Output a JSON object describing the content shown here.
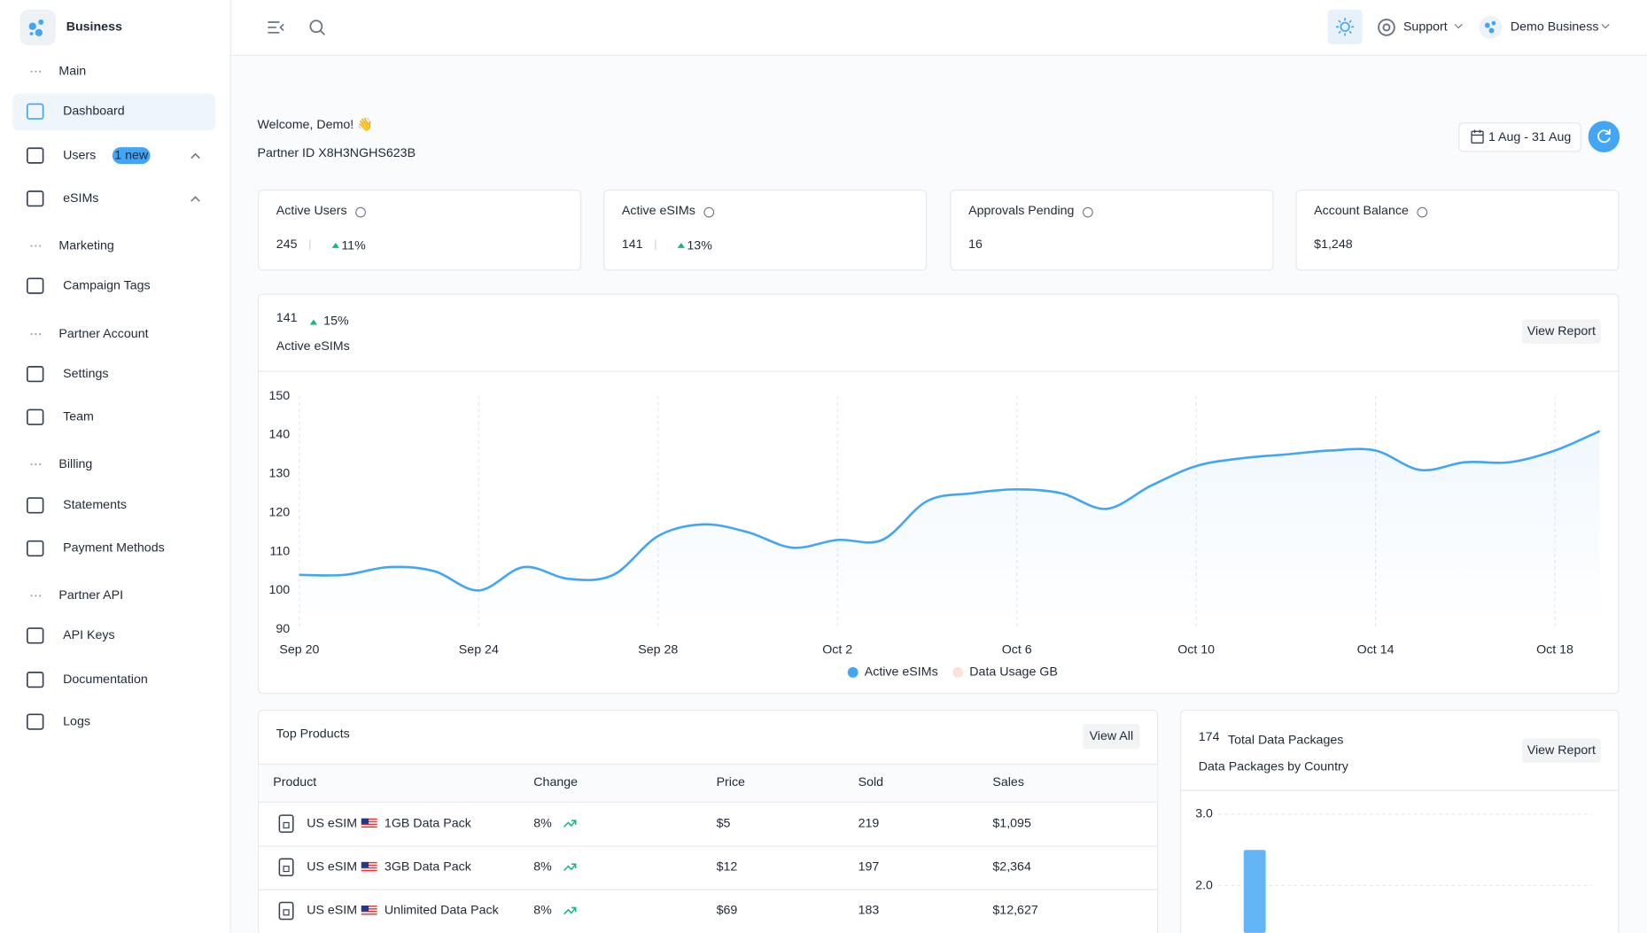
{
  "sidebar": {
    "brand": "Business",
    "sections": [
      {
        "label": "Main",
        "items": [
          {
            "label": "Dashboard"
          },
          {
            "label": "Users",
            "badge": "1 new"
          },
          {
            "label": "eSIMs"
          }
        ]
      },
      {
        "label": "Marketing",
        "items": [
          {
            "label": "Campaign Tags"
          }
        ]
      },
      {
        "label": "Partner Account",
        "items": [
          {
            "label": "Settings"
          },
          {
            "label": "Team"
          }
        ]
      },
      {
        "label": "Billing",
        "items": [
          {
            "label": "Statements"
          },
          {
            "label": "Payment Methods"
          }
        ]
      },
      {
        "label": "Partner API",
        "items": [
          {
            "label": "API Keys"
          },
          {
            "label": "Documentation"
          },
          {
            "label": "Logs"
          }
        ]
      }
    ]
  },
  "header": {
    "support": "Support",
    "account": "Demo Business"
  },
  "welcome": {
    "title": "Welcome, Demo! 👋",
    "partner_id": "Partner ID X8H3NGHS623B",
    "date_range": "1 Aug - 31 Aug"
  },
  "stats": [
    {
      "label": "Active Users",
      "value": 245,
      "change": "11%"
    },
    {
      "label": "Active eSIMs",
      "value": 141,
      "change": "13%"
    },
    {
      "label": "Approvals Pending",
      "value": 16
    },
    {
      "label": "Account Balance",
      "value": "$1,248"
    }
  ],
  "chart_data": [
    {
      "type": "line",
      "value": 141,
      "change": "15%",
      "title": "Active eSIMs",
      "action": "View Report",
      "categories": [
        "Sep 20",
        null,
        null,
        null,
        "Sep 24",
        null,
        null,
        null,
        "Sep 28",
        null,
        null,
        null,
        "Oct 2",
        null,
        null,
        null,
        "Oct 6",
        null,
        null,
        null,
        "Oct 10",
        null,
        null,
        null,
        "Oct 14",
        null,
        null,
        null,
        "Oct 18",
        null
      ],
      "series": [
        {
          "name": "Active eSIMs",
          "color": "#42a5f5",
          "values": [
            104,
            104,
            106,
            105,
            100,
            106,
            103,
            104,
            114,
            117,
            115,
            111,
            113,
            113,
            123,
            125,
            126,
            125,
            121,
            127,
            132,
            134,
            135,
            136,
            136,
            131,
            133,
            133,
            136,
            141
          ]
        },
        {
          "name": "Data Usage GB",
          "color": "#fbe3d9",
          "values": [
            null,
            null,
            null,
            null,
            null,
            null,
            null,
            null,
            null,
            null,
            null,
            null,
            null,
            null,
            null,
            null,
            null,
            null,
            null,
            null,
            null,
            null,
            null,
            null,
            null,
            null,
            null,
            null,
            null,
            null
          ]
        }
      ],
      "ylim": [
        90,
        150
      ],
      "yticks": [
        90,
        100,
        110,
        120,
        130,
        140,
        150
      ],
      "grid": "x",
      "legend": "bottom"
    },
    {
      "type": "bar",
      "value": 174,
      "subtitle": "Total Data Packages",
      "title": "Data Packages by Country",
      "action": "View Report",
      "categories": [
        null
      ],
      "values": [
        2.5
      ],
      "color": "#64b5f6",
      "ylim": [
        0,
        3
      ],
      "yticks": [
        {
          "value": 2,
          "label": "2.0"
        },
        {
          "value": 3,
          "label": "3.0"
        }
      ],
      "grid": true
    }
  ],
  "top_products": {
    "title": "Top Products",
    "action": "View All",
    "columns": [
      "Product",
      "Change",
      "Price",
      "Sold",
      "Sales"
    ],
    "rows": [
      [
        "US eSIM",
        "1GB Data Pack",
        "8%",
        "$5",
        "219",
        "$1,095"
      ],
      [
        "US eSIM",
        "3GB Data Pack",
        "8%",
        "$12",
        "197",
        "$2,364"
      ],
      [
        "US eSIM",
        "Unlimited Data Pack",
        "8%",
        "$69",
        "183",
        "$12,627"
      ]
    ]
  }
}
